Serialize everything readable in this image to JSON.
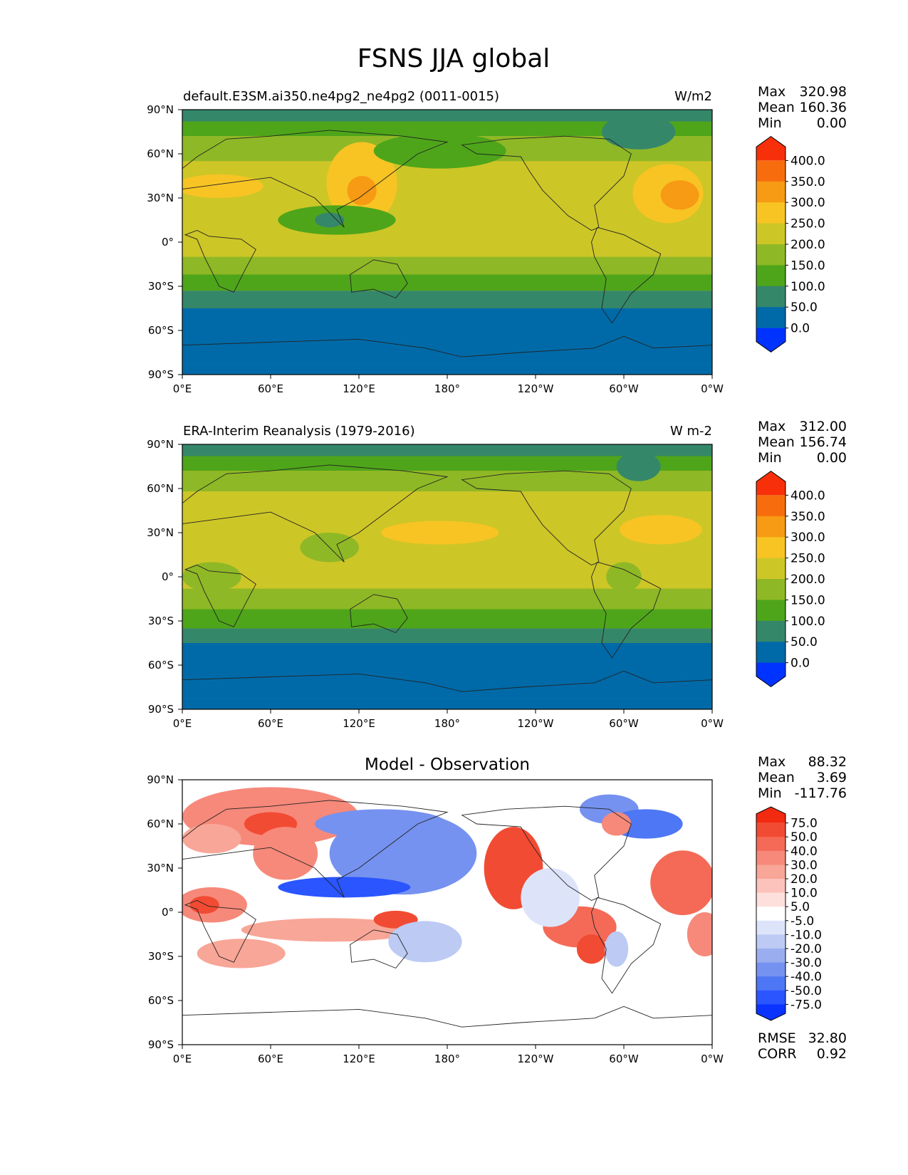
{
  "title": "FSNS JJA global",
  "x_ticks": [
    "0°E",
    "60°E",
    "120°E",
    "180°",
    "120°W",
    "60°W",
    "0°W"
  ],
  "y_ticks": [
    "90°N",
    "60°N",
    "30°N",
    "0°",
    "30°S",
    "60°S",
    "90°S"
  ],
  "stat_labels": {
    "max": "Max",
    "mean": "Mean",
    "min": "Min",
    "rmse": "RMSE",
    "corr": "CORR"
  },
  "colors": {
    "abs_levels": [
      "#0033ff",
      "#006aa8",
      "#35876a",
      "#4ea51a",
      "#8fb826",
      "#cdc627",
      "#f7c424",
      "#f79a14",
      "#f76d0e",
      "#f7300a"
    ],
    "diff_levels": [
      "#0a33ff",
      "#2a55ff",
      "#4e77f5",
      "#7692f0",
      "#9aaeef",
      "#bccaf4",
      "#dde4fa",
      "#ffffff",
      "#fde0dc",
      "#fbc3bb",
      "#f8a697",
      "#f6897a",
      "#f46a57",
      "#f24b33",
      "#f22a10"
    ]
  },
  "chart_data": [
    {
      "type": "heatmap",
      "panel": "test",
      "title": "default.E3SM.ai350.ne4pg2_ne4pg2 (0011-0015)",
      "units": "W/m2",
      "xlabel": "",
      "ylabel": "",
      "xlim": [
        0,
        360
      ],
      "ylim": [
        -90,
        90
      ],
      "stats": {
        "max": "320.98",
        "mean": "160.36",
        "min": "0.00"
      },
      "colorbar_levels": [
        0,
        50,
        100,
        150,
        200,
        250,
        300,
        350,
        400
      ],
      "colorbar_labels": [
        "400.0",
        "350.0",
        "300.0",
        "250.0",
        "200.0",
        "150.0",
        "100.0",
        "50.0",
        "0.0"
      ],
      "zonal_bands": [
        {
          "lat": [
            82,
            90
          ],
          "value": 95
        },
        {
          "lat": [
            72,
            82
          ],
          "value": 140
        },
        {
          "lat": [
            55,
            72
          ],
          "value": 160
        },
        {
          "lat": [
            25,
            55
          ],
          "value": 215
        },
        {
          "lat": [
            -10,
            25
          ],
          "value": 200
        },
        {
          "lat": [
            -22,
            -10
          ],
          "value": 175
        },
        {
          "lat": [
            -33,
            -22
          ],
          "value": 140
        },
        {
          "lat": [
            -45,
            -33
          ],
          "value": 95
        },
        {
          "lat": [
            -83,
            -45
          ],
          "value": 40
        },
        {
          "lat": [
            -90,
            -83
          ],
          "value": 0
        }
      ],
      "features": [
        {
          "lon": 122,
          "lat": 40,
          "rx": 24,
          "ry": 28,
          "value": 275
        },
        {
          "lon": 122,
          "lat": 35,
          "rx": 10,
          "ry": 10,
          "value": 310
        },
        {
          "lon": 330,
          "lat": 33,
          "rx": 24,
          "ry": 20,
          "value": 265
        },
        {
          "lon": 338,
          "lat": 32,
          "rx": 13,
          "ry": 10,
          "value": 305
        },
        {
          "lon": 25,
          "lat": 38,
          "rx": 30,
          "ry": 8,
          "value": 260
        },
        {
          "lon": 105,
          "lat": 15,
          "rx": 40,
          "ry": 10,
          "value": 140
        },
        {
          "lon": 100,
          "lat": 15,
          "rx": 10,
          "ry": 5,
          "value": 90
        },
        {
          "lon": 175,
          "lat": 62,
          "rx": 45,
          "ry": 12,
          "value": 140
        },
        {
          "lon": 310,
          "lat": 75,
          "rx": 25,
          "ry": 12,
          "value": 95
        }
      ]
    },
    {
      "type": "heatmap",
      "panel": "reference",
      "title": "ERA-Interim Reanalysis (1979-2016)",
      "units": "W m-2",
      "xlabel": "",
      "ylabel": "",
      "xlim": [
        0,
        360
      ],
      "ylim": [
        -90,
        90
      ],
      "stats": {
        "max": "312.00",
        "mean": "156.74",
        "min": "0.00"
      },
      "colorbar_levels": [
        0,
        50,
        100,
        150,
        200,
        250,
        300,
        350,
        400
      ],
      "colorbar_labels": [
        "400.0",
        "350.0",
        "300.0",
        "250.0",
        "200.0",
        "150.0",
        "100.0",
        "50.0",
        "0.0"
      ],
      "zonal_bands": [
        {
          "lat": [
            82,
            90
          ],
          "value": 95
        },
        {
          "lat": [
            72,
            82
          ],
          "value": 140
        },
        {
          "lat": [
            58,
            72
          ],
          "value": 165
        },
        {
          "lat": [
            20,
            58
          ],
          "value": 210
        },
        {
          "lat": [
            -8,
            20
          ],
          "value": 200
        },
        {
          "lat": [
            -22,
            -8
          ],
          "value": 175
        },
        {
          "lat": [
            -35,
            -22
          ],
          "value": 145
        },
        {
          "lat": [
            -45,
            -35
          ],
          "value": 95
        },
        {
          "lat": [
            -83,
            -45
          ],
          "value": 40
        },
        {
          "lat": [
            -90,
            -83
          ],
          "value": 0
        }
      ],
      "features": [
        {
          "lon": 175,
          "lat": 30,
          "rx": 40,
          "ry": 8,
          "value": 265
        },
        {
          "lon": 325,
          "lat": 32,
          "rx": 28,
          "ry": 10,
          "value": 265
        },
        {
          "lon": 300,
          "lat": 0,
          "rx": 12,
          "ry": 10,
          "value": 160
        },
        {
          "lon": 20,
          "lat": 0,
          "rx": 20,
          "ry": 10,
          "value": 165
        },
        {
          "lon": 100,
          "lat": 20,
          "rx": 20,
          "ry": 10,
          "value": 175
        },
        {
          "lon": 310,
          "lat": 75,
          "rx": 15,
          "ry": 10,
          "value": 95
        }
      ]
    },
    {
      "type": "heatmap",
      "panel": "difference",
      "title": "Model - Observation",
      "units": "",
      "xlabel": "",
      "ylabel": "",
      "xlim": [
        0,
        360
      ],
      "ylim": [
        -90,
        90
      ],
      "stats": {
        "max": "88.32",
        "mean": "3.69",
        "min": "-117.76"
      },
      "rmse": "32.80",
      "corr": "0.92",
      "colorbar_levels": [
        -75,
        -50,
        -40,
        -30,
        -20,
        -10,
        -5,
        5,
        10,
        20,
        30,
        40,
        50,
        75
      ],
      "colorbar_labels": [
        "75.0",
        "50.0",
        "40.0",
        "30.0",
        "20.0",
        "10.0",
        "5.0",
        "-5.0",
        "-10.0",
        "-20.0",
        "-30.0",
        "-40.0",
        "-50.0",
        "-75.0"
      ],
      "zonal_bands": [
        {
          "lat": [
            -90,
            -38
          ],
          "value": 0
        }
      ],
      "features": [
        {
          "lon": 60,
          "lat": 65,
          "rx": 60,
          "ry": 20,
          "value": 35
        },
        {
          "lon": 60,
          "lat": 60,
          "rx": 18,
          "ry": 8,
          "value": 60
        },
        {
          "lon": 20,
          "lat": 50,
          "rx": 20,
          "ry": 10,
          "value": 22
        },
        {
          "lon": 70,
          "lat": 40,
          "rx": 22,
          "ry": 18,
          "value": 30
        },
        {
          "lon": 20,
          "lat": 5,
          "rx": 24,
          "ry": 12,
          "value": 35
        },
        {
          "lon": 15,
          "lat": 5,
          "rx": 10,
          "ry": 6,
          "value": 60
        },
        {
          "lon": 100,
          "lat": -12,
          "rx": 60,
          "ry": 8,
          "value": 25
        },
        {
          "lon": 145,
          "lat": -5,
          "rx": 15,
          "ry": 6,
          "value": 55
        },
        {
          "lon": 40,
          "lat": -28,
          "rx": 30,
          "ry": 10,
          "value": 25
        },
        {
          "lon": 150,
          "lat": 40,
          "rx": 50,
          "ry": 28,
          "value": -40
        },
        {
          "lon": 110,
          "lat": 17,
          "rx": 45,
          "ry": 7,
          "value": -55
        },
        {
          "lon": 135,
          "lat": 60,
          "rx": 45,
          "ry": 10,
          "value": -35
        },
        {
          "lon": 165,
          "lat": -20,
          "rx": 25,
          "ry": 14,
          "value": -18
        },
        {
          "lon": 225,
          "lat": 30,
          "rx": 20,
          "ry": 28,
          "value": 50
        },
        {
          "lon": 270,
          "lat": -10,
          "rx": 25,
          "ry": 14,
          "value": 45
        },
        {
          "lon": 278,
          "lat": -25,
          "rx": 10,
          "ry": 10,
          "value": 60
        },
        {
          "lon": 290,
          "lat": 70,
          "rx": 20,
          "ry": 10,
          "value": -40
        },
        {
          "lon": 315,
          "lat": 60,
          "rx": 25,
          "ry": 10,
          "value": -45
        },
        {
          "lon": 340,
          "lat": 20,
          "rx": 22,
          "ry": 22,
          "value": 45
        },
        {
          "lon": 295,
          "lat": 60,
          "rx": 10,
          "ry": 8,
          "value": 30
        },
        {
          "lon": 355,
          "lat": -15,
          "rx": 12,
          "ry": 15,
          "value": 35
        },
        {
          "lon": 295,
          "lat": -25,
          "rx": 8,
          "ry": 12,
          "value": -20
        },
        {
          "lon": 250,
          "lat": 10,
          "rx": 20,
          "ry": 20,
          "value": -8
        }
      ]
    }
  ]
}
